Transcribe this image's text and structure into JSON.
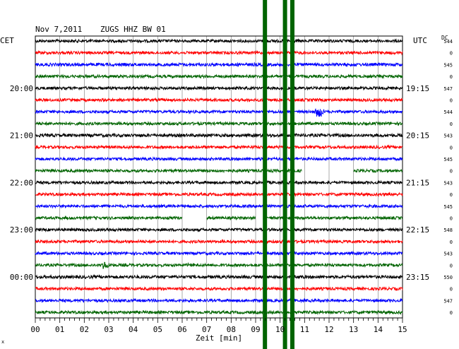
{
  "header": {
    "date": "Nov 7,2011",
    "station": "ZUGS HHZ BW 01",
    "left_tz": "CET",
    "right_tz": "UTC",
    "dc_label": "DC"
  },
  "footer": {
    "corner_mark": "x"
  },
  "chart_data": {
    "type": "line",
    "title": "Nov 7,2011   ZUGS HHZ BW 01",
    "xlabel": "Zeit [min]",
    "xlim": [
      0,
      15
    ],
    "x_ticks": [
      "00",
      "01",
      "02",
      "03",
      "04",
      "05",
      "06",
      "07",
      "08",
      "09",
      "10",
      "11",
      "12",
      "13",
      "14",
      "15"
    ],
    "rows_per_hour": 4,
    "row_colors": [
      "#000000",
      "#ff0000",
      "#0000ff",
      "#006400"
    ],
    "left_hour_labels": [
      {
        "row": 4,
        "label": "20:00"
      },
      {
        "row": 8,
        "label": "21:00"
      },
      {
        "row": 12,
        "label": "22:00"
      },
      {
        "row": 16,
        "label": "23:00"
      },
      {
        "row": 20,
        "label": "00:00"
      }
    ],
    "right_hour_labels": [
      {
        "row": 4,
        "label": "19:15"
      },
      {
        "row": 8,
        "label": "20:15"
      },
      {
        "row": 12,
        "label": "21:15"
      },
      {
        "row": 16,
        "label": "22:15"
      },
      {
        "row": 20,
        "label": "23:15"
      }
    ],
    "dc_offsets": [
      "544",
      "0",
      "545",
      "0",
      "547",
      "0",
      "544",
      "0",
      "543",
      "0",
      "545",
      "0",
      "543",
      "0",
      "545",
      "0",
      "548",
      "0",
      "543",
      "0",
      "550",
      "0",
      "547",
      "0"
    ],
    "traces": [
      {
        "row": 0,
        "noise": 2.0
      },
      {
        "row": 1,
        "noise": 2.0
      },
      {
        "row": 2,
        "noise": 2.2
      },
      {
        "row": 3,
        "noise": 2.0
      },
      {
        "row": 4,
        "noise": 2.0
      },
      {
        "row": 5,
        "noise": 2.0
      },
      {
        "row": 6,
        "noise": 2.0,
        "events": [
          {
            "t": 11.6,
            "amp": 9,
            "dur": 0.25
          }
        ]
      },
      {
        "row": 7,
        "noise": 2.0
      },
      {
        "row": 8,
        "noise": 2.2
      },
      {
        "row": 9,
        "noise": 2.0
      },
      {
        "row": 10,
        "noise": 2.0
      },
      {
        "row": 11,
        "noise": 2.0,
        "gaps": [
          [
            10.9,
            11.4
          ],
          [
            11.4,
            13.0
          ]
        ]
      },
      {
        "row": 12,
        "noise": 2.0
      },
      {
        "row": 13,
        "noise": 2.0
      },
      {
        "row": 14,
        "noise": 2.0
      },
      {
        "row": 15,
        "noise": 2.0,
        "gaps": [
          [
            6.0,
            7.0
          ],
          [
            9.0,
            9.3
          ]
        ]
      },
      {
        "row": 16,
        "noise": 2.0
      },
      {
        "row": 17,
        "noise": 2.0
      },
      {
        "row": 18,
        "noise": 2.0
      },
      {
        "row": 19,
        "noise": 2.0,
        "events": [
          {
            "t": 2.85,
            "amp": 6,
            "dur": 0.3
          },
          {
            "t": 6.3,
            "amp": 3,
            "dur": 0.3
          }
        ]
      },
      {
        "row": 20,
        "noise": 2.2
      },
      {
        "row": 21,
        "noise": 2.0
      },
      {
        "row": 22,
        "noise": 2.0
      },
      {
        "row": 23,
        "noise": 2.0
      }
    ],
    "spikes": [
      {
        "t": 9.38,
        "color": "#006400"
      },
      {
        "t": 10.2,
        "color": "#006400"
      },
      {
        "t": 10.5,
        "color": "#006400"
      }
    ],
    "grid": true
  }
}
